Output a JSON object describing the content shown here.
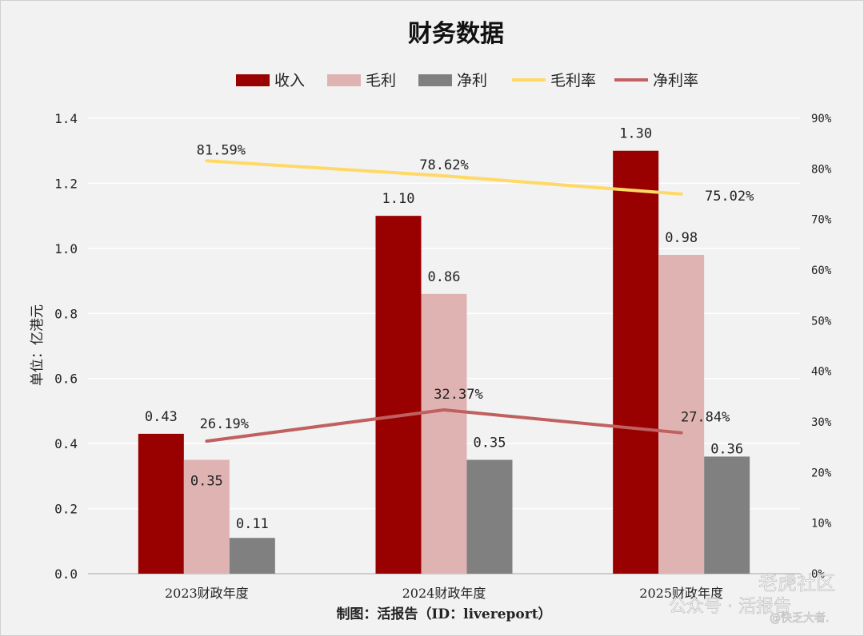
{
  "chart_data": {
    "type": "bar",
    "title": "财务数据",
    "categories": [
      "2023财政年度",
      "2024财政年度",
      "2025财政年度"
    ],
    "series": [
      {
        "name": "收入",
        "kind": "bar",
        "axis": "left",
        "color": "#990000",
        "values": [
          0.43,
          1.1,
          1.3
        ],
        "labels": [
          "0.43",
          "1.10",
          "1.30"
        ]
      },
      {
        "name": "毛利",
        "kind": "bar",
        "axis": "left",
        "color": "#e0b3b3",
        "values": [
          0.35,
          0.86,
          0.98
        ],
        "labels": [
          "0.35",
          "0.86",
          "0.98"
        ]
      },
      {
        "name": "净利",
        "kind": "bar",
        "axis": "left",
        "color": "#808080",
        "values": [
          0.11,
          0.35,
          0.36
        ],
        "labels": [
          "0.11",
          "0.35",
          "0.36"
        ]
      },
      {
        "name": "毛利率",
        "kind": "line",
        "axis": "right",
        "color": "#ffd966",
        "values": [
          81.59,
          78.62,
          75.02
        ],
        "labels": [
          "81.59%",
          "78.62%",
          "75.02%"
        ]
      },
      {
        "name": "净利率",
        "kind": "line",
        "axis": "right",
        "color": "#c06060",
        "values": [
          26.19,
          32.37,
          27.84
        ],
        "labels": [
          "26.19%",
          "32.37%",
          "27.84%"
        ]
      }
    ],
    "ylabel": "单位：亿港元",
    "ylim": [
      0,
      1.4
    ],
    "y_ticks": [
      "0.0",
      "0.2",
      "0.4",
      "0.6",
      "0.8",
      "1.0",
      "1.2",
      "1.4"
    ],
    "y2lim": [
      0,
      90
    ],
    "y2_ticks": [
      "0%",
      "10%",
      "20%",
      "30%",
      "40%",
      "50%",
      "60%",
      "70%",
      "80%",
      "90%"
    ],
    "grid": true,
    "legend": "top"
  },
  "credit": "制图：活报告（ID：livereport）",
  "watermark": {
    "line1": "老虎社区",
    "line2": "公众号 · 活报告",
    "line3": "@快乏大者."
  }
}
